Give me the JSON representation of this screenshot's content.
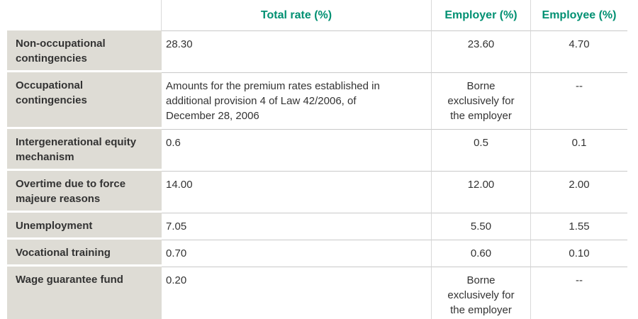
{
  "table": {
    "columns": [
      "",
      "Total rate (%)",
      "Employer (%)",
      "Employee (%)"
    ],
    "rows": [
      {
        "label": "Non-occupational contingencies",
        "total": "28.30",
        "employer": "23.60",
        "employee": "4.70"
      },
      {
        "label": "Occupational contingencies",
        "total": "Amounts for the premium rates established in additional provision 4 of Law 42/2006, of December 28, 2006",
        "employer": "Borne exclusively for the employer",
        "employee": "--"
      },
      {
        "label": "Intergenerational equity mechanism",
        "total": "0.6",
        "employer": "0.5",
        "employee": "0.1"
      },
      {
        "label": "Overtime due to force majeure reasons",
        "total": "14.00",
        "employer": "12.00",
        "employee": "2.00"
      },
      {
        "label": "Unemployment",
        "total": "7.05",
        "employer": "5.50",
        "employee": "1.55"
      },
      {
        "label": "Vocational training",
        "total": "0.70",
        "employer": "0.60",
        "employee": "0.10"
      },
      {
        "label": "Wage guarantee fund",
        "total": "0.20",
        "employer": "Borne exclusively for the employer",
        "employee": "--"
      }
    ],
    "colors": {
      "header_text": "#009072",
      "row_label_bg": "#dedcd5",
      "row_label_text": "#3a3a3a",
      "cell_text": "#333333",
      "horizontal_line": "#c9c9c9",
      "vertical_line": "#d9d9d9",
      "background": "#ffffff"
    }
  }
}
